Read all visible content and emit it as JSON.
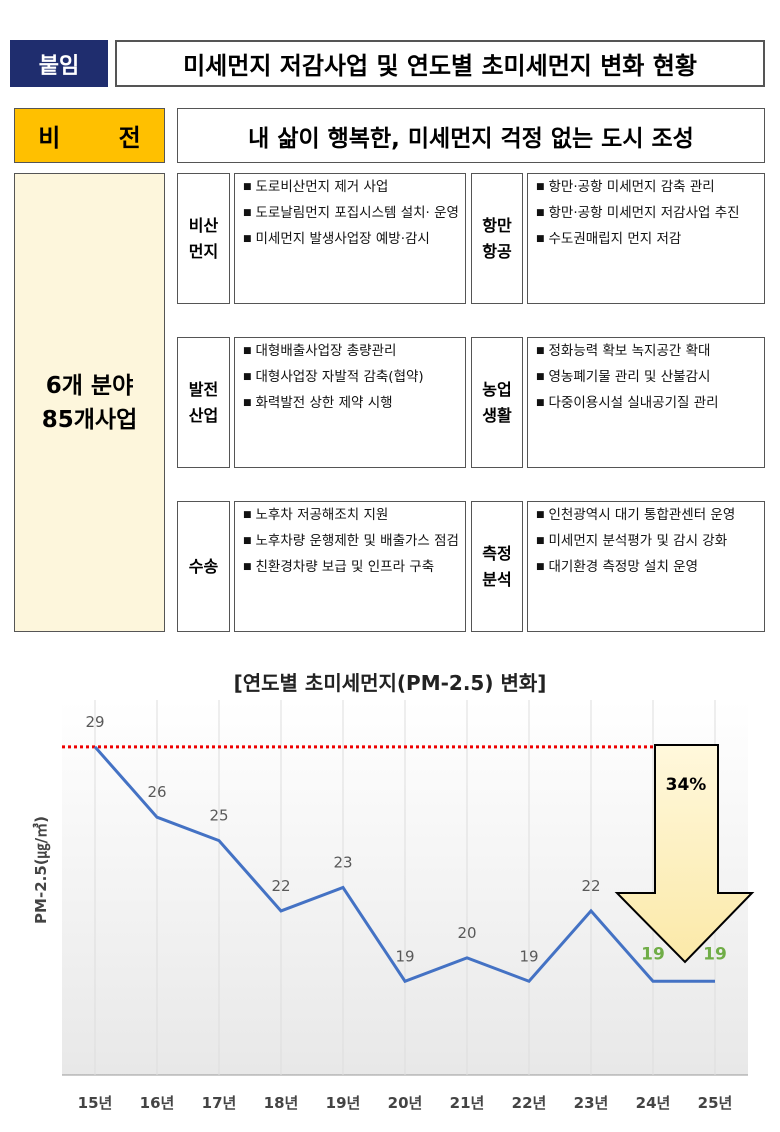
{
  "header": {
    "tag": "붙임",
    "title": "미세먼지 저감사업 및 연도별 초미세먼지 변화 현황"
  },
  "vision": {
    "label": "비 전",
    "text": "내 삶이 행복한, 미세먼지 걱정 없는 도시 조성"
  },
  "summary": [
    "6개 분야",
    "85개사업"
  ],
  "fields": [
    {
      "label": [
        "비산",
        "먼지"
      ],
      "items": [
        "도로비산먼지 제거 사업",
        "도로날림먼지 포집시스템 설치· 운영",
        "미세먼지 발생사업장 예방·감시"
      ]
    },
    {
      "label": [
        "항만",
        "항공"
      ],
      "items": [
        "항만·공항 미세먼지 감축 관리",
        "항만·공항 미세먼지 저감사업 추진",
        "수도권매립지 먼지 저감"
      ]
    },
    {
      "label": [
        "발전",
        "산업"
      ],
      "items": [
        "대형배출사업장 총량관리",
        "대형사업장 자발적 감축(협약)",
        "화력발전 상한 제약 시행"
      ]
    },
    {
      "label": [
        "농업",
        "생활"
      ],
      "items": [
        "정화능력 확보 녹지공간 확대",
        "영농폐기물 관리 및 산불감시",
        "다중이용시설 실내공기질 관리"
      ]
    },
    {
      "label": [
        "수송"
      ],
      "items": [
        "노후차 저공해조치 지원",
        "노후차량 운행제한 및 배출가스 점검",
        "친환경차량 보급 및 인프라 구축"
      ]
    },
    {
      "label": [
        "측정",
        "분석"
      ],
      "items": [
        "인천광역시 대기 통합관센터 운영",
        "미세먼지 분석평가 및 감시 강화",
        "대기환경 측정망 설치 운영"
      ]
    }
  ],
  "chart_data": {
    "type": "line",
    "title": "[연도별 초미세먼지(PM-2.5) 변화]",
    "y_label": "PM-2.5(㎍/㎥)",
    "categories": [
      "15년",
      "16년",
      "17년",
      "18년",
      "19년",
      "20년",
      "21년",
      "22년",
      "23년",
      "24년",
      "25년"
    ],
    "values": [
      29,
      26,
      25,
      22,
      23,
      19,
      20,
      19,
      22,
      19,
      19
    ],
    "color": "#4472c4",
    "label_colors": [
      "#595959",
      "#595959",
      "#595959",
      "#595959",
      "#595959",
      "#595959",
      "#595959",
      "#595959",
      "#595959",
      "#70ad47",
      "#70ad47"
    ],
    "ylim": [
      15,
      31
    ],
    "grid": true,
    "annotation": "34%"
  }
}
